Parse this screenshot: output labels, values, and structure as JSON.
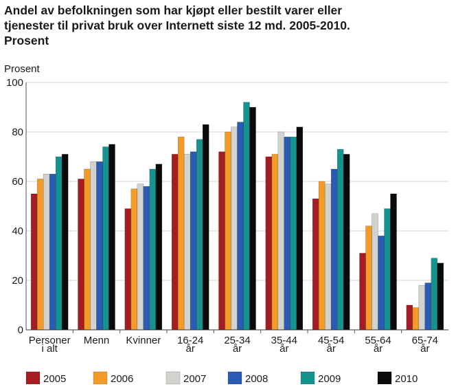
{
  "header": {
    "title_lines": [
      "Andel av befolkningen som har kjøpt eller bestilt varer eller",
      "tjenester til privat bruk over Internett siste 12 md. 2005-2010.",
      "Prosent"
    ]
  },
  "chart_data": {
    "type": "bar",
    "title": "Andel av befolkningen som har kjøpt eller bestilt varer eller tjenester til privat bruk over Internett siste 12 md. 2005-2010. Prosent",
    "xlabel": "",
    "ylabel": "Prosent",
    "ylim": [
      0,
      100
    ],
    "yticks": [
      0,
      20,
      40,
      60,
      80,
      100
    ],
    "grid": true,
    "legend_position": "bottom",
    "categories": [
      [
        "Personer",
        "i alt"
      ],
      [
        "Menn"
      ],
      [
        "Kvinner"
      ],
      [
        "16-24",
        "år"
      ],
      [
        "25-34",
        "år"
      ],
      [
        "35-44",
        "år"
      ],
      [
        "45-54",
        "år"
      ],
      [
        "55-64",
        "år"
      ],
      [
        "65-74",
        "år"
      ]
    ],
    "series": [
      {
        "name": "2005",
        "color": "#a31d22",
        "values": [
          55,
          61,
          49,
          71,
          72,
          70,
          53,
          31,
          10
        ]
      },
      {
        "name": "2006",
        "color": "#f39b27",
        "values": [
          61,
          65,
          57,
          78,
          80,
          71,
          60,
          42,
          9
        ]
      },
      {
        "name": "2007",
        "color": "#d2d2ce",
        "values": [
          63,
          68,
          59,
          71,
          82,
          80,
          59,
          47,
          18
        ]
      },
      {
        "name": "2008",
        "color": "#2c5bb3",
        "values": [
          63,
          68,
          58,
          72,
          84,
          78,
          65,
          38,
          19
        ]
      },
      {
        "name": "2009",
        "color": "#17938f",
        "values": [
          70,
          74,
          65,
          77,
          92,
          78,
          73,
          49,
          29
        ]
      },
      {
        "name": "2010",
        "color": "#0a0a0a",
        "values": [
          71,
          75,
          67,
          83,
          90,
          82,
          71,
          55,
          27
        ]
      }
    ]
  }
}
